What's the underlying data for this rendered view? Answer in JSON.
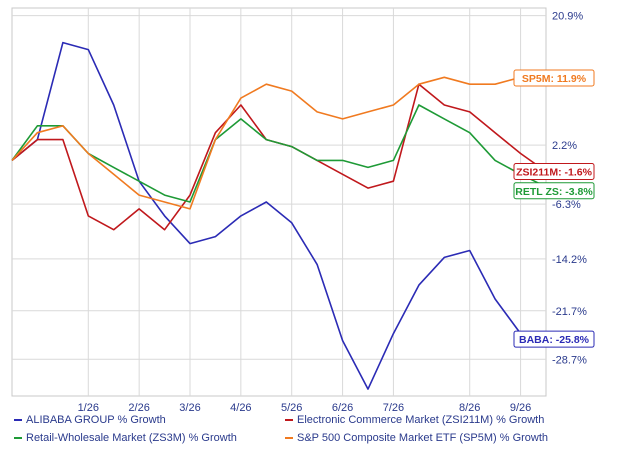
{
  "chart_data": {
    "type": "line",
    "x": [
      "12/21",
      "1/1",
      "1/13",
      "1/26",
      "2/9",
      "2/26",
      "3/10",
      "3/26",
      "4/10",
      "4/26",
      "5/10",
      "5/26",
      "6/10",
      "6/26",
      "7/10",
      "7/26",
      "8/3",
      "8/11",
      "8/26",
      "9/10",
      "9/26",
      "10/5"
    ],
    "xticks": [
      "1/26",
      "2/26",
      "3/26",
      "4/26",
      "5/26",
      "6/26",
      "7/26",
      "8/26",
      "9/26"
    ],
    "yticks": [
      "20.9%",
      "2.2%",
      "-6.3%",
      "-14.2%",
      "-21.7%",
      "-28.7%"
    ],
    "ylim": [
      -34,
      22
    ],
    "series": [
      {
        "name": "ALIBABA GROUP % Growth",
        "color": "#2b2bb5",
        "values": [
          0,
          3,
          17,
          16,
          8,
          -3,
          -8,
          -12,
          -11,
          -8,
          -6,
          -9,
          -15,
          -26,
          -33,
          -25,
          -18,
          -14,
          -13,
          -20,
          -25,
          -25.8
        ],
        "label": "BABA: -25.8%"
      },
      {
        "name": "Electronic Commerce Market (ZSI211M) % Growth",
        "color": "#c0181c",
        "values": [
          0,
          3,
          3,
          -8,
          -10,
          -7,
          -10,
          -5,
          4,
          8,
          3,
          2,
          0,
          -2,
          -4,
          -3,
          11,
          8,
          7,
          4,
          1,
          -1.6
        ],
        "label": "ZSI211M: -1.6%"
      },
      {
        "name": "Retail-Wholesale Market (ZS3M) % Growth",
        "color": "#1e9a36",
        "values": [
          0,
          5,
          5,
          1,
          -1,
          -3,
          -5,
          -6,
          3,
          6,
          3,
          2,
          0,
          0,
          -1,
          0,
          8,
          6,
          4,
          0,
          -2,
          -3.8
        ],
        "label": "RETL ZS: -3.8%"
      },
      {
        "name": "S&P 500 Composite Market ETF (SP5M) % Growth",
        "color": "#f07a20",
        "values": [
          0,
          4,
          5,
          1,
          -2,
          -5,
          -6,
          -7,
          3,
          9,
          11,
          10,
          7,
          6,
          7,
          8,
          11,
          12,
          11,
          11,
          12,
          11.9
        ],
        "label": "SP5M: 11.9%"
      }
    ]
  },
  "legend": [
    {
      "label": "ALIBABA GROUP % Growth",
      "color": "#2b2bb5"
    },
    {
      "label": "Electronic Commerce Market (ZSI211M) % Growth",
      "color": "#c0181c"
    },
    {
      "label": "Retail-Wholesale Market (ZS3M) % Growth",
      "color": "#1e9a36"
    },
    {
      "label": "S&P 500 Composite Market ETF (SP5M) % Growth",
      "color": "#f07a20"
    }
  ],
  "colors": {
    "grid": "#d9d9d9",
    "axis": "#2a3a8c",
    "accent_blue": "#2b2bb5"
  }
}
